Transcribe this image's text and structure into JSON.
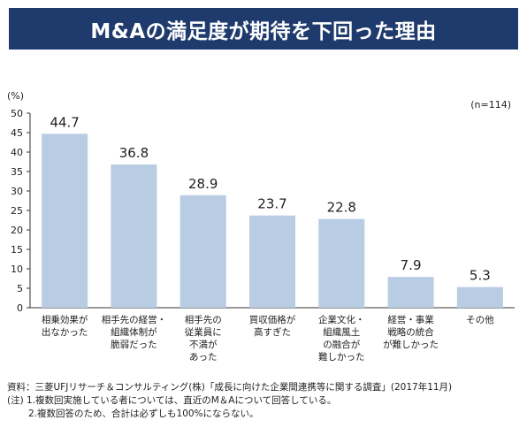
{
  "title": "M&Aの満足度が期待を下回った理由",
  "chart_data": {
    "type": "bar",
    "title": "M&Aの満足度が期待を下回った理由",
    "ylabel": "(%)",
    "annotation": "(n=114)",
    "ylim": [
      0,
      50
    ],
    "yticks": [
      0,
      5,
      10,
      15,
      20,
      25,
      30,
      35,
      40,
      45,
      50
    ],
    "categories": [
      [
        "相乗効果が",
        "出なかった"
      ],
      [
        "相手先の経営・",
        "組織体制が",
        "脆弱だった"
      ],
      [
        "相手先の",
        "従業員に",
        "不満が",
        "あった"
      ],
      [
        "買収価格が",
        "高すぎた"
      ],
      [
        "企業文化・",
        "組織風土",
        "の融合が",
        "難しかった"
      ],
      [
        "経営・事業",
        "戦略の統合",
        "が難しかった"
      ],
      [
        "その他"
      ]
    ],
    "values": [
      44.7,
      36.8,
      28.9,
      23.7,
      22.8,
      7.9,
      5.3
    ],
    "value_labels": [
      "44.7",
      "36.8",
      "28.9",
      "23.7",
      "22.8",
      "7.9",
      "5.3"
    ],
    "colors": {
      "bar": "#b8cce4",
      "axis": "#333333",
      "title_bg": "#1f3b6e"
    }
  },
  "notes": {
    "source": "資料：三菱UFJリサーチ＆コンサルティング(株)「成長に向けた企業間連携等に関する調査」(2017年11月)",
    "note1": "(注) 1.複数回実施している者については、直近のM＆Aについて回答している。",
    "note2": "2.複数回答のため、合計は必ずしも100%にならない。"
  }
}
